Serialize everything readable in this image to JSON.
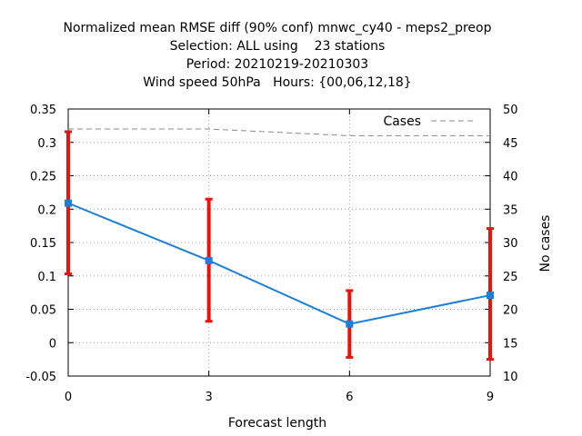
{
  "chart_data": {
    "type": "line",
    "title_lines": [
      "Normalized mean RMSE diff (90% conf) mnwc_cy40 - meps2_preop",
      "Selection: ALL using    23 stations",
      "Period: 20210219-20210303",
      "Wind speed 50hPa   Hours: {00,06,12,18}"
    ],
    "xlabel": "Forecast length",
    "ylabel": "",
    "y2label": "No cases",
    "x": [
      0,
      3,
      6,
      9
    ],
    "xlim": [
      0,
      9
    ],
    "ylim": [
      -0.05,
      0.35
    ],
    "y2lim": [
      10,
      50
    ],
    "xticks": [
      "0",
      "3",
      "6",
      "9"
    ],
    "yticks": [
      "-0.05",
      "0",
      "0.05",
      "0.1",
      "0.15",
      "0.2",
      "0.25",
      "0.3",
      "0.35"
    ],
    "y2ticks": [
      "10",
      "15",
      "20",
      "25",
      "30",
      "35",
      "40",
      "45",
      "50"
    ],
    "grid": true,
    "series": [
      {
        "values": [
          0.209,
          0.123,
          0.028,
          0.071
        ],
        "ci_low": [
          0.103,
          0.032,
          -0.022,
          -0.025
        ],
        "ci_high": [
          0.316,
          0.215,
          0.078,
          0.171
        ],
        "color": "#1a7fd9",
        "error_color": "#e8130a",
        "axis": "left"
      },
      {
        "name": "Cases",
        "values": [
          47,
          47,
          46,
          46
        ],
        "color": "#888888",
        "style": "dashed",
        "axis": "right"
      }
    ],
    "legend_position": "top-right"
  }
}
